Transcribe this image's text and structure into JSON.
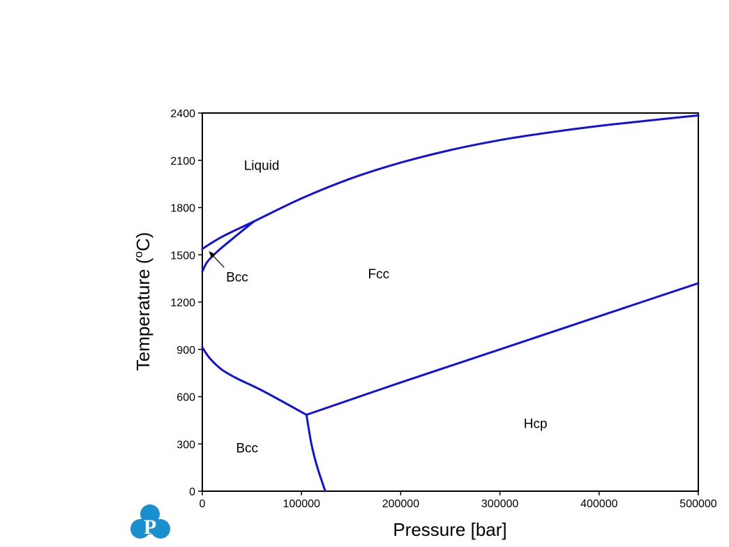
{
  "chart_data": {
    "type": "line",
    "xlabel": "Pressure [bar]",
    "ylabel_prefix": "Temperature (",
    "ylabel_sup": "o",
    "ylabel_suffix": "C)",
    "xlim": [
      0,
      500000
    ],
    "ylim": [
      0,
      2400
    ],
    "xticks": [
      0,
      100000,
      200000,
      300000,
      400000,
      500000
    ],
    "xtick_labels": [
      "0",
      "100000",
      "200000",
      "300000",
      "400000",
      "500000"
    ],
    "yticks": [
      0,
      300,
      600,
      900,
      1200,
      1500,
      1800,
      2100,
      2400
    ],
    "ytick_labels": [
      "0",
      "300",
      "600",
      "900",
      "1200",
      "1500",
      "1800",
      "2100",
      "2400"
    ],
    "line_color": "#1010e0",
    "series": [
      {
        "x": [
          0,
          20000,
          52000,
          100000,
          150000,
          200000,
          250000,
          300000,
          350000,
          400000,
          450000,
          500000
        ],
        "y": [
          1538,
          1615,
          1712,
          1858,
          1985,
          2085,
          2165,
          2228,
          2277,
          2318,
          2352,
          2385
        ]
      },
      {
        "x": [
          0,
          5000,
          15000,
          30000,
          52000
        ],
        "y": [
          1394,
          1455,
          1520,
          1600,
          1712
        ]
      },
      {
        "x": [
          0,
          8000,
          20000,
          35000,
          60000,
          105000
        ],
        "y": [
          912,
          840,
          770,
          715,
          640,
          485
        ]
      },
      {
        "x": [
          105000,
          110000,
          116000,
          124000
        ],
        "y": [
          485,
          300,
          150,
          0
        ]
      },
      {
        "x": [
          105000,
          200000,
          300000,
          400000,
          500000
        ],
        "y": [
          485,
          690,
          900,
          1110,
          1320
        ]
      }
    ],
    "annotations": [
      {
        "text": "Liquid",
        "x": 42000,
        "y": 2040
      },
      {
        "text": "Fcc",
        "x": 167000,
        "y": 1350
      },
      {
        "text": "Bcc",
        "x": 24000,
        "y": 1330
      },
      {
        "text": "Bcc",
        "x": 34000,
        "y": 245
      },
      {
        "text": "Hcp",
        "x": 324000,
        "y": 400
      }
    ],
    "arrow": {
      "from": [
        22000,
        1420
      ],
      "to": [
        7000,
        1520
      ]
    }
  },
  "logo": {
    "letter": "P",
    "color": "#1a8fd0"
  }
}
